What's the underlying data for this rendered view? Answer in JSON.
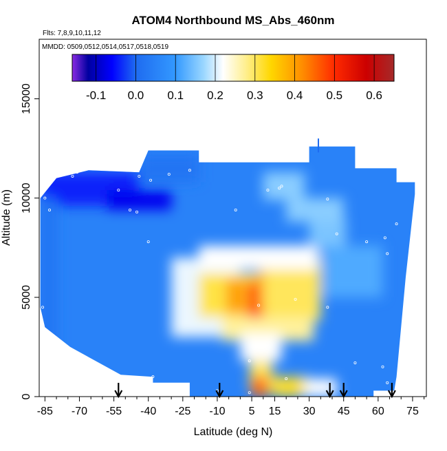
{
  "chart_data": {
    "type": "heatmap",
    "title": "ATOM4 Northbound MS_Abs_460nm",
    "flights_note": "Flts: 7,8,9,10,11,12",
    "mmdd_note": "MMDD: 0509,0512,0514,0517,0518,0519",
    "xlabel": "Latitude (deg N)",
    "ylabel": "Altitude (m)",
    "xlim": [
      -87.5,
      81
    ],
    "ylim": [
      0,
      18000
    ],
    "x_ticks": [
      -85,
      -70,
      -55,
      -40,
      -25,
      -10,
      5,
      15,
      30,
      45,
      60,
      75
    ],
    "x_minor_ticks": [
      -80,
      -75,
      -65,
      -60,
      -50,
      -45,
      -35,
      -30,
      -20,
      -15,
      -5,
      0,
      10,
      20,
      25,
      35,
      40,
      50,
      55,
      65,
      70,
      80
    ],
    "y_ticks": [
      0,
      5000,
      10000,
      15000
    ],
    "colorbar": {
      "range": [
        -0.16,
        0.65
      ],
      "ticks": [
        -0.1,
        0.0,
        0.1,
        0.2,
        0.3,
        0.4,
        0.5,
        0.6
      ],
      "stops": [
        {
          "v": -0.16,
          "c": "#8a2be2"
        },
        {
          "v": -0.12,
          "c": "#0000a0"
        },
        {
          "v": -0.06,
          "c": "#0000ff"
        },
        {
          "v": 0.0,
          "c": "#1e6bf0"
        },
        {
          "v": 0.1,
          "c": "#3399ff"
        },
        {
          "v": 0.17,
          "c": "#99d6ff"
        },
        {
          "v": 0.22,
          "c": "#ffffff"
        },
        {
          "v": 0.28,
          "c": "#ffee88"
        },
        {
          "v": 0.34,
          "c": "#ffd700"
        },
        {
          "v": 0.42,
          "c": "#ff8c00"
        },
        {
          "v": 0.5,
          "c": "#ff2a00"
        },
        {
          "v": 0.58,
          "c": "#cc0000"
        },
        {
          "v": 0.65,
          "c": "#a52a2a"
        }
      ]
    },
    "field_regions": [
      {
        "lat": [
          -87,
          -44
        ],
        "alt": [
          9600,
          11300
        ],
        "value": -0.04
      },
      {
        "lat": [
          -58,
          -30
        ],
        "alt": [
          9400,
          10400
        ],
        "value": -0.07
      },
      {
        "lat": [
          -44,
          -18
        ],
        "alt": [
          10800,
          12200
        ],
        "value": 0.02
      },
      {
        "lat": [
          -87,
          -80
        ],
        "alt": [
          2000,
          10000
        ],
        "value": 0.02
      },
      {
        "lat": [
          -30,
          0
        ],
        "alt": [
          3000,
          7000
        ],
        "value": 0.21
      },
      {
        "lat": [
          -18,
          12
        ],
        "alt": [
          4000,
          6200
        ],
        "value": 0.31
      },
      {
        "lat": [
          -6,
          2
        ],
        "alt": [
          4200,
          5900
        ],
        "value": 0.4
      },
      {
        "lat": [
          3,
          12
        ],
        "alt": [
          4000,
          5800
        ],
        "value": 0.48
      },
      {
        "lat": [
          8,
          22
        ],
        "alt": [
          4400,
          6400
        ],
        "value": 0.4
      },
      {
        "lat": [
          10,
          35
        ],
        "alt": [
          3800,
          7000
        ],
        "value": 0.3
      },
      {
        "lat": [
          -18,
          34
        ],
        "alt": [
          6400,
          7600
        ],
        "value": 0.22
      },
      {
        "lat": [
          -8,
          32
        ],
        "alt": [
          2800,
          4000
        ],
        "value": 0.27
      },
      {
        "lat": [
          0,
          18
        ],
        "alt": [
          1800,
          3200
        ],
        "value": 0.22
      },
      {
        "lat": [
          4,
          14
        ],
        "alt": [
          300,
          1800
        ],
        "value": 0.3
      },
      {
        "lat": [
          5,
          12
        ],
        "alt": [
          0,
          1000
        ],
        "value": 0.45
      },
      {
        "lat": [
          14,
          30
        ],
        "alt": [
          0,
          1000
        ],
        "value": 0.32
      },
      {
        "lat": [
          28,
          42
        ],
        "alt": [
          0,
          900
        ],
        "value": 0.22
      },
      {
        "lat": [
          10,
          28
        ],
        "alt": [
          9900,
          11300
        ],
        "value": 0.16
      },
      {
        "lat": [
          30,
          46
        ],
        "alt": [
          7500,
          9000
        ],
        "value": 0.15
      },
      {
        "lat": [
          36,
          62
        ],
        "alt": [
          5000,
          7600
        ],
        "value": 0.12
      },
      {
        "lat": [
          20,
          45
        ],
        "alt": [
          8800,
          10000
        ],
        "value": 0.16
      }
    ],
    "flight_arrows_lat": [
      -53,
      -9,
      39,
      45,
      66
    ]
  }
}
